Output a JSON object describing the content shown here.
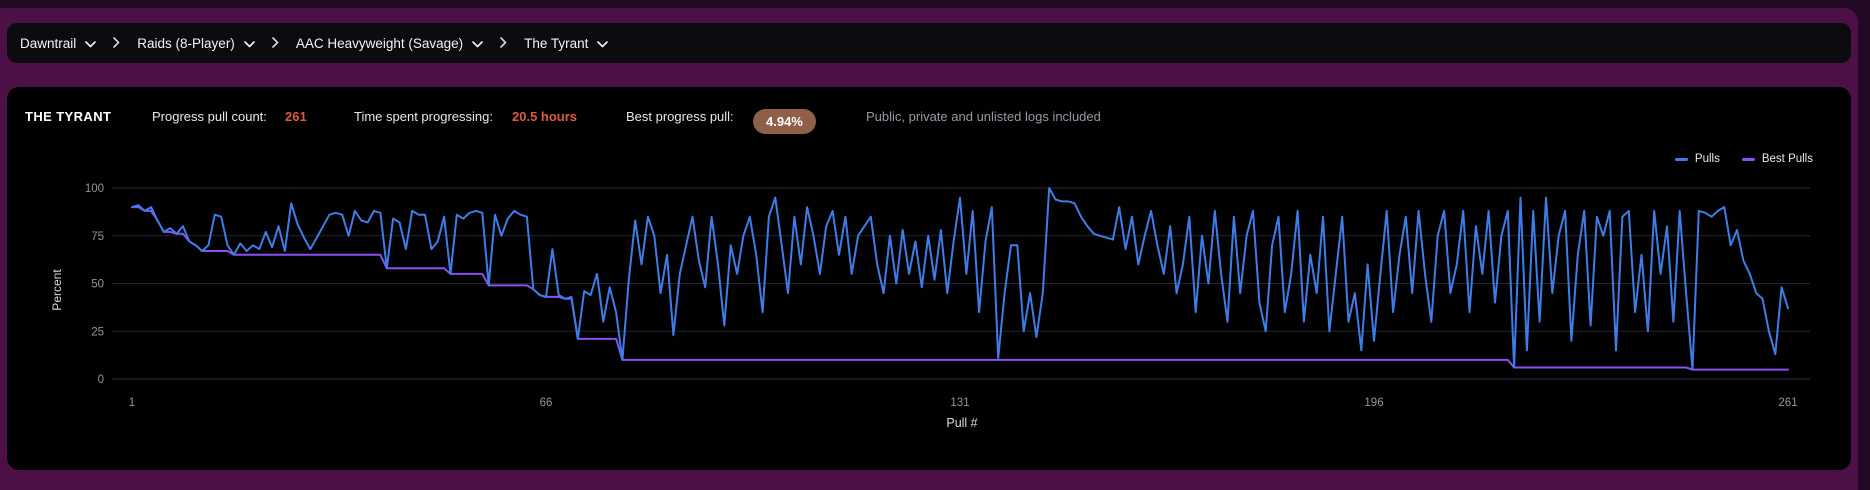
{
  "breadcrumb": {
    "items": [
      {
        "label": "Dawntrail"
      },
      {
        "label": "Raids (8-Player)"
      },
      {
        "label": "AAC Heavyweight (Savage)"
      },
      {
        "label": "The Tyrant"
      }
    ]
  },
  "header": {
    "boss_name": "THE TYRANT",
    "pull_count_label": "Progress pull count:",
    "pull_count_value": "261",
    "time_label": "Time spent progressing:",
    "time_value": "20.5 hours",
    "best_label": "Best progress pull:",
    "best_value": "4.94%",
    "note": "Public, private and unlisted logs included"
  },
  "legend": [
    {
      "label": "Pulls",
      "color": "#3E7DE8"
    },
    {
      "label": "Best Pulls",
      "color": "#8B4FF2"
    }
  ],
  "colors": {
    "page_bg": "#220a24",
    "panel_purple": "#4c1047",
    "card_bg": "#010102",
    "accent_orange": "#dd5b3d",
    "badge_brown": "#8f5f47",
    "gridline": "#23262f",
    "tick_text": "#8e94a0",
    "pulls_line": "#3E7DE8",
    "best_line": "#8B4FF2"
  },
  "chart_data": {
    "type": "line",
    "xlabel": "Pull #",
    "ylabel": "Percent",
    "ylim": [
      0,
      100
    ],
    "yticks": [
      0,
      25,
      50,
      75,
      100
    ],
    "xticks": [
      1,
      66,
      131,
      196,
      261
    ],
    "grid": "horizontal",
    "legend_position": "top-right",
    "series": [
      {
        "name": "Pulls",
        "color": "#3E7DE8",
        "values": [
          90,
          91,
          88,
          90,
          83,
          77,
          79,
          76,
          80,
          72,
          70,
          67,
          70,
          86,
          85,
          70,
          65,
          71,
          67,
          70,
          68,
          77,
          69,
          80,
          67,
          92,
          81,
          74,
          68,
          74,
          80,
          86,
          87,
          86,
          75,
          88,
          83,
          82,
          88,
          87,
          58,
          84,
          82,
          68,
          88,
          86,
          86,
          68,
          72,
          85,
          55,
          86,
          84,
          87,
          88,
          87,
          49,
          86,
          75,
          84,
          88,
          86,
          85,
          47,
          44,
          43,
          68,
          44,
          42,
          43,
          21,
          46,
          44,
          55,
          30,
          48,
          35,
          10,
          52,
          83,
          60,
          85,
          75,
          45,
          65,
          23,
          55,
          70,
          85,
          62,
          48,
          85,
          60,
          28,
          70,
          55,
          75,
          85,
          65,
          35,
          85,
          95,
          70,
          45,
          85,
          60,
          90,
          75,
          55,
          80,
          88,
          65,
          85,
          55,
          75,
          80,
          85,
          60,
          45,
          75,
          50,
          78,
          55,
          72,
          48,
          75,
          52,
          78,
          45,
          72,
          95,
          55,
          88,
          35,
          72,
          90,
          11,
          45,
          70,
          70,
          25,
          45,
          22,
          45,
          100,
          94,
          93,
          93,
          92,
          85,
          80,
          76,
          75,
          74,
          73,
          90,
          68,
          85,
          60,
          75,
          88,
          70,
          55,
          80,
          45,
          60,
          85,
          35,
          75,
          50,
          88,
          55,
          30,
          85,
          45,
          75,
          88,
          40,
          25,
          70,
          85,
          35,
          55,
          88,
          30,
          65,
          45,
          85,
          25,
          55,
          85,
          30,
          45,
          15,
          60,
          20,
          55,
          88,
          35,
          65,
          85,
          45,
          88,
          55,
          30,
          75,
          88,
          45,
          60,
          88,
          35,
          80,
          55,
          88,
          40,
          75,
          88,
          6,
          95,
          15,
          88,
          30,
          95,
          45,
          75,
          88,
          20,
          65,
          88,
          28,
          85,
          75,
          88,
          15,
          85,
          88,
          35,
          65,
          25,
          88,
          55,
          80,
          30,
          88,
          45,
          4.94,
          88,
          87,
          85,
          88,
          90,
          70,
          78,
          62,
          55,
          45,
          42,
          25,
          13,
          48,
          37
        ]
      },
      {
        "name": "Best Pulls",
        "color": "#8B4FF2",
        "derivation": "running minimum of Pulls series",
        "step_points": [
          [
            1,
            90
          ],
          [
            5,
            83
          ],
          [
            6,
            77
          ],
          [
            8,
            76
          ],
          [
            10,
            72
          ],
          [
            11,
            70
          ],
          [
            12,
            67
          ],
          [
            17,
            65
          ],
          [
            41,
            58
          ],
          [
            51,
            55
          ],
          [
            57,
            49
          ],
          [
            64,
            47
          ],
          [
            65,
            44
          ],
          [
            66,
            43
          ],
          [
            69,
            42
          ],
          [
            71,
            21
          ],
          [
            78,
            10
          ],
          [
            218,
            6
          ],
          [
            246,
            4.94
          ]
        ]
      }
    ]
  }
}
